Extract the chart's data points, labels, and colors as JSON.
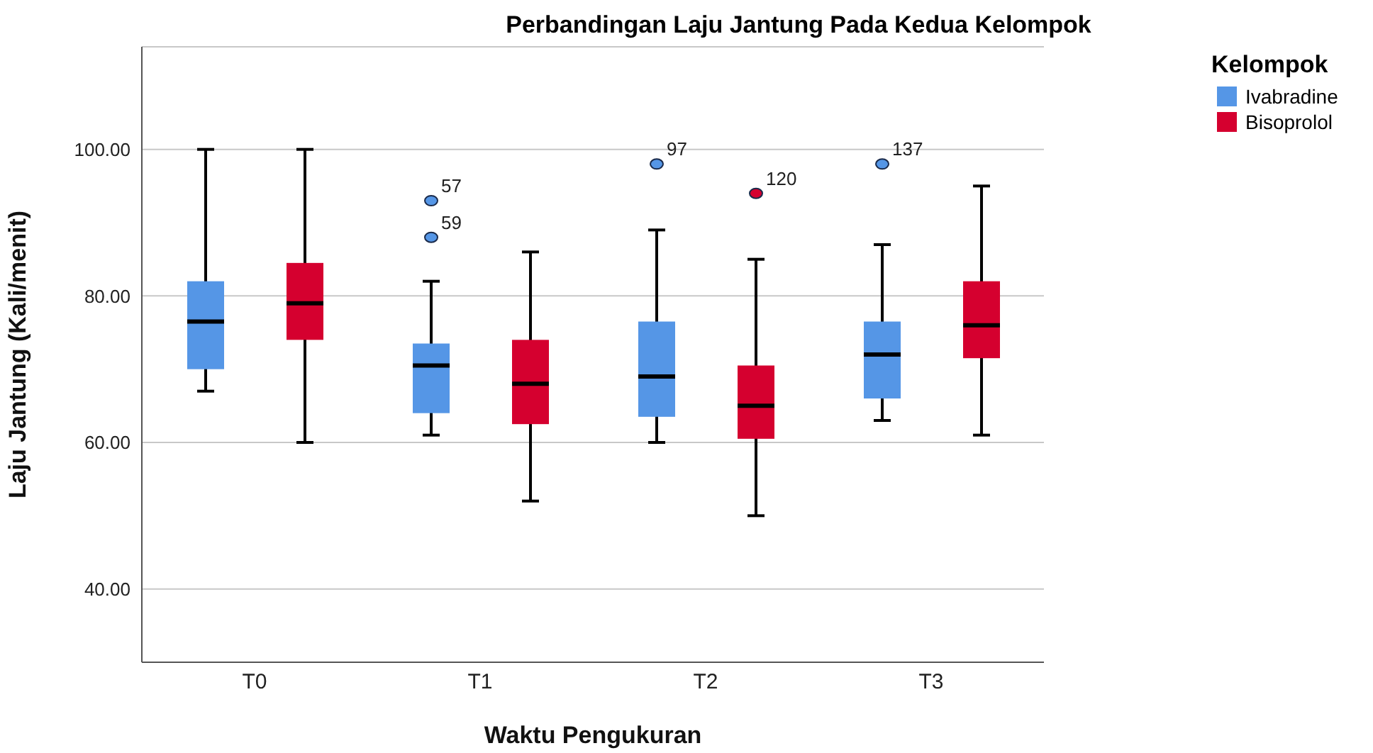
{
  "chart_data": {
    "type": "box",
    "title": "Perbandingan Laju Jantung Pada Kedua Kelompok",
    "xlabel": "Waktu Pengukuran",
    "ylabel": "Laju Jantung (Kali/menit)",
    "legend_title": "Kelompok",
    "categories": [
      "T0",
      "T1",
      "T2",
      "T3"
    ],
    "series": [
      {
        "name": "Ivabradine",
        "color": "#5596e6",
        "boxes": [
          {
            "low": 67,
            "q1": 70,
            "median": 76.5,
            "q3": 82,
            "high": 100
          },
          {
            "low": 61,
            "q1": 64,
            "median": 70.5,
            "q3": 73.5,
            "high": 82,
            "outliers": [
              93,
              88
            ]
          },
          {
            "low": 60,
            "q1": 63.5,
            "median": 69,
            "q3": 76.5,
            "high": 89,
            "outliers": [
              98
            ]
          },
          {
            "low": 63,
            "q1": 66,
            "median": 72,
            "q3": 76.5,
            "high": 87,
            "outliers": [
              98
            ]
          }
        ]
      },
      {
        "name": "Bisoprolol",
        "color": "#d5002f",
        "boxes": [
          {
            "low": 60,
            "q1": 74,
            "median": 79,
            "q3": 84.5,
            "high": 100
          },
          {
            "low": 52,
            "q1": 62.5,
            "median": 68,
            "q3": 74,
            "high": 86
          },
          {
            "low": 50,
            "q1": 60.5,
            "median": 65,
            "q3": 70.5,
            "high": 85,
            "outliers": [
              94
            ]
          },
          {
            "low": 61,
            "q1": 71.5,
            "median": 76,
            "q3": 82,
            "high": 95
          }
        ]
      }
    ],
    "annotations": [
      "57",
      "59",
      "97",
      "120",
      "137"
    ],
    "ylim": [
      30,
      114
    ],
    "yticks": [
      {
        "value": 40,
        "label": "40.00"
      },
      {
        "value": 60,
        "label": "60.00"
      },
      {
        "value": 80,
        "label": "80.00"
      },
      {
        "value": 100,
        "label": "100.00"
      }
    ],
    "grid": "y",
    "legend": "top right"
  }
}
